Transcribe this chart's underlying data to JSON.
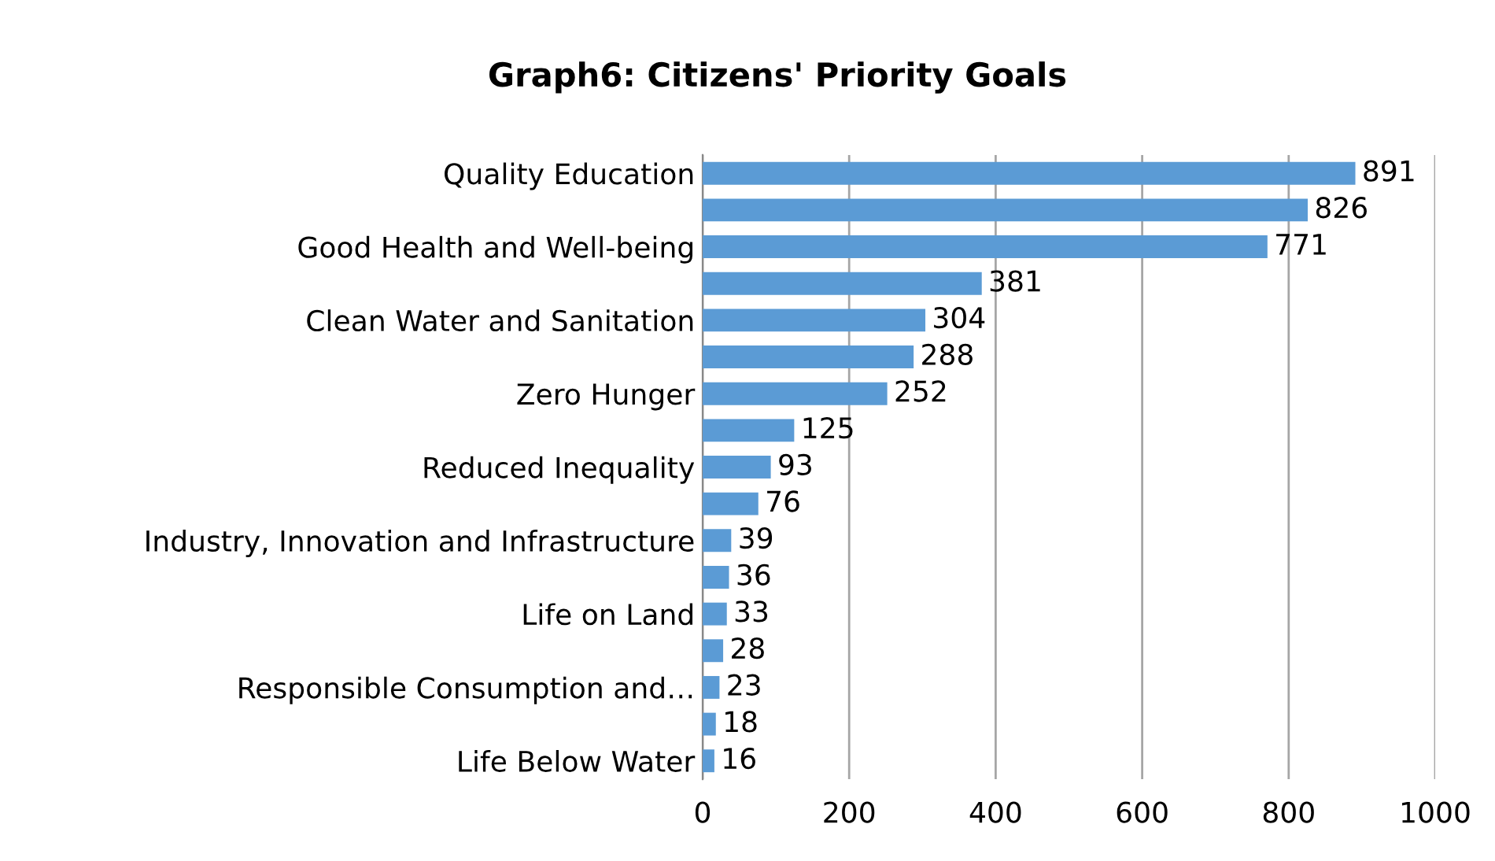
{
  "chart_data": {
    "type": "bar",
    "title": "Graph6: Citizens' Priority Goals",
    "orientation": "horizontal",
    "categories": [
      "Quality Education",
      null,
      "Good Health and Well-being",
      null,
      "Clean Water and Sanitation",
      null,
      "Zero Hunger",
      null,
      "Reduced Inequality",
      null,
      "Industry, Innovation and Infrastructure",
      null,
      "Life on Land",
      null,
      "Responsible Consumption and…",
      null,
      "Life Below Water"
    ],
    "values": [
      891,
      826,
      771,
      381,
      304,
      288,
      252,
      125,
      93,
      76,
      39,
      36,
      33,
      28,
      23,
      18,
      16
    ],
    "color": "#5b9bd5",
    "xlim": [
      0,
      1000
    ],
    "xticks": [
      0,
      200,
      400,
      600,
      800,
      1000
    ],
    "grid": "x",
    "data_labels": true
  }
}
